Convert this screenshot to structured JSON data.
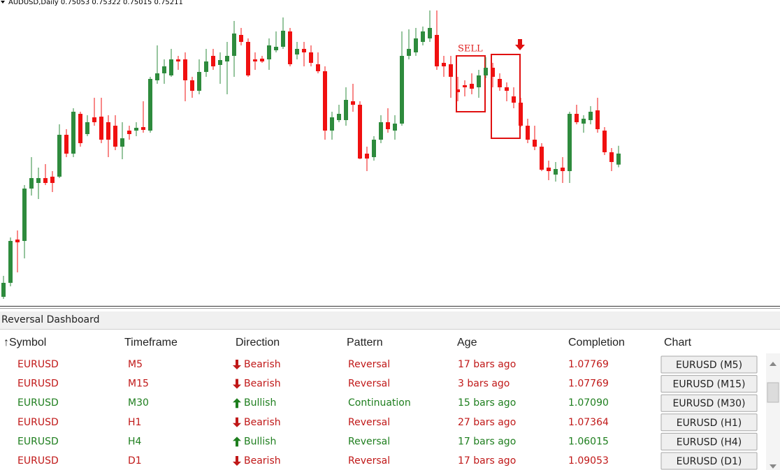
{
  "chart_data": {
    "type": "candlestick",
    "header": "AUDUSD,Daily  0.75053 0.75322 0.75015 0.75211",
    "annotation": "SELL",
    "open": [
      0.7316,
      0.7336,
      0.7398,
      0.7396,
      0.7471,
      0.7479,
      0.7486,
      0.7488,
      0.7488,
      0.7548,
      0.7521,
      0.7578,
      0.7549,
      0.7573,
      0.7574,
      0.7566,
      0.7561,
      0.7531,
      0.7554,
      0.7554,
      0.7559,
      0.7554,
      0.7626,
      0.7636,
      0.7633,
      0.7656,
      0.7656,
      0.7626,
      0.7611,
      0.7638,
      0.7661,
      0.7648,
      0.7653,
      0.7661,
      0.7691,
      0.7681,
      0.7656,
      0.7657,
      0.7656,
      0.7669,
      0.7674,
      0.7696,
      0.7663,
      0.7671,
      0.7666,
      0.7649,
      0.7639,
      0.7554,
      0.7569,
      0.7569,
      0.7596,
      0.7591,
      0.7521,
      0.7516,
      0.7541,
      0.7566,
      0.7554,
      0.7564,
      0.7661,
      0.7666,
      0.7681,
      0.7686,
      0.7691,
      0.7651,
      0.7649,
      0.7613,
      0.7619,
      0.7621,
      0.7616,
      0.7633,
      0.7644,
      0.7628,
      0.7616,
      0.7603,
      0.7594,
      0.7561,
      0.7541,
      0.7531,
      0.7501,
      0.7491,
      0.7501,
      0.7496,
      0.7578,
      0.7564,
      0.7569,
      0.7583,
      0.7554,
      0.7523,
      0.75053
    ],
    "high": [
      0.7346,
      0.7401,
      0.7411,
      0.7476,
      0.7516,
      0.7501,
      0.7506,
      0.7496,
      0.7563,
      0.7556,
      0.7586,
      0.7581,
      0.7576,
      0.7601,
      0.7601,
      0.7576,
      0.7576,
      0.7566,
      0.7561,
      0.7566,
      0.7596,
      0.7631,
      0.7676,
      0.7656,
      0.7671,
      0.7661,
      0.7666,
      0.7631,
      0.7656,
      0.7671,
      0.7671,
      0.7666,
      0.7681,
      0.7711,
      0.7701,
      0.7686,
      0.7666,
      0.7661,
      0.7686,
      0.7696,
      0.7716,
      0.7701,
      0.7681,
      0.7681,
      0.7676,
      0.7666,
      0.7646,
      0.7581,
      0.7591,
      0.7616,
      0.7621,
      0.7596,
      0.7531,
      0.7546,
      0.7576,
      0.7586,
      0.7576,
      0.7696,
      0.7699,
      0.7701,
      0.7703,
      0.7726,
      0.7726,
      0.7661,
      0.7661,
      0.7631,
      0.7626,
      0.7636,
      0.7641,
      0.7659,
      0.7651,
      0.7636,
      0.7623,
      0.7616,
      0.7601,
      0.7571,
      0.7561,
      0.7536,
      0.7511,
      0.7509,
      0.7516,
      0.7581,
      0.7591,
      0.7576,
      0.7589,
      0.7601,
      0.7559,
      0.7529,
      0.75322
    ],
    "low": [
      0.7313,
      0.7331,
      0.7351,
      0.7371,
      0.7461,
      0.7456,
      0.7476,
      0.7466,
      0.7486,
      0.7516,
      0.7516,
      0.7531,
      0.7546,
      0.7561,
      0.7536,
      0.7516,
      0.7526,
      0.7513,
      0.7541,
      0.7546,
      0.7551,
      0.7551,
      0.7621,
      0.7621,
      0.7631,
      0.7641,
      0.7596,
      0.7601,
      0.7606,
      0.7631,
      0.7641,
      0.7621,
      0.7606,
      0.7631,
      0.7676,
      0.7631,
      0.7641,
      0.7651,
      0.7641,
      0.7666,
      0.7671,
      0.7646,
      0.7656,
      0.7646,
      0.7646,
      0.7636,
      0.7541,
      0.7541,
      0.7566,
      0.7561,
      0.7581,
      0.7513,
      0.7496,
      0.7511,
      0.7536,
      0.7551,
      0.7541,
      0.7561,
      0.7656,
      0.7661,
      0.7676,
      0.7681,
      0.7641,
      0.7631,
      0.7601,
      0.7596,
      0.7603,
      0.7606,
      0.7601,
      0.7629,
      0.7616,
      0.7611,
      0.7596,
      0.7586,
      0.7559,
      0.7536,
      0.7526,
      0.7496,
      0.7483,
      0.7481,
      0.7479,
      0.7479,
      0.7563,
      0.7551,
      0.7563,
      0.7551,
      0.7519,
      0.7496,
      0.75015
    ],
    "close": [
      0.7336,
      0.7396,
      0.7394,
      0.7471,
      0.7486,
      0.7486,
      0.7479,
      0.7479,
      0.7548,
      0.7521,
      0.7581,
      0.7536,
      0.7566,
      0.7566,
      0.7541,
      0.7541,
      0.7531,
      0.7543,
      0.7549,
      0.7558,
      0.7555,
      0.7628,
      0.7636,
      0.7646,
      0.7656,
      0.7653,
      0.7626,
      0.7611,
      0.7638,
      0.7653,
      0.7646,
      0.7655,
      0.7661,
      0.7693,
      0.7681,
      0.7633,
      0.7653,
      0.7653,
      0.7676,
      0.7674,
      0.7697,
      0.7649,
      0.7671,
      0.7666,
      0.7651,
      0.7639,
      0.7554,
      0.7573,
      0.7578,
      0.7598,
      0.7591,
      0.7514,
      0.7514,
      0.7541,
      0.7566,
      0.7556,
      0.7564,
      0.7661,
      0.7671,
      0.7686,
      0.7696,
      0.7701,
      0.7646,
      0.7646,
      0.7631,
      0.7609,
      0.7616,
      0.7614,
      0.7633,
      0.7644,
      0.7631,
      0.7616,
      0.7611,
      0.7594,
      0.7561,
      0.7541,
      0.7531,
      0.7498,
      0.7496,
      0.7499,
      0.7496,
      0.7578,
      0.7566,
      0.7571,
      0.7581,
      0.7556,
      0.7523,
      0.7509,
      0.75211
    ],
    "ylim": [
      0.7306,
      0.7741
    ],
    "up_color": "#2e8b3d",
    "down_color": "#f01010"
  },
  "dashboard": {
    "title": "Reversal Dashboard",
    "columns": [
      "↑Symbol",
      "Timeframe",
      "Direction",
      "Pattern",
      "Age",
      "Completion",
      "Chart"
    ],
    "rows": [
      {
        "symbol": "EURUSD",
        "timeframe": "M5",
        "direction": "Bearish",
        "pattern": "Reversal",
        "age": "17 bars ago",
        "completion": "1.07769",
        "chart": "EURUSD (M5)",
        "color": "#c01818",
        "arrow": "down"
      },
      {
        "symbol": "EURUSD",
        "timeframe": "M15",
        "direction": "Bearish",
        "pattern": "Reversal",
        "age": "3 bars ago",
        "completion": "1.07769",
        "chart": "EURUSD (M15)",
        "color": "#c01818",
        "arrow": "down"
      },
      {
        "symbol": "EURUSD",
        "timeframe": "M30",
        "direction": "Bullish",
        "pattern": "Continuation",
        "age": "15 bars ago",
        "completion": "1.07090",
        "chart": "EURUSD (M30)",
        "color": "#1e7e1e",
        "arrow": "up"
      },
      {
        "symbol": "EURUSD",
        "timeframe": "H1",
        "direction": "Bearish",
        "pattern": "Reversal",
        "age": "27 bars ago",
        "completion": "1.07364",
        "chart": "EURUSD (H1)",
        "color": "#c01818",
        "arrow": "down"
      },
      {
        "symbol": "EURUSD",
        "timeframe": "H4",
        "direction": "Bullish",
        "pattern": "Reversal",
        "age": "17 bars ago",
        "completion": "1.06015",
        "chart": "EURUSD (H4)",
        "color": "#1e7e1e",
        "arrow": "up"
      },
      {
        "symbol": "EURUSD",
        "timeframe": "D1",
        "direction": "Bearish",
        "pattern": "Reversal",
        "age": "17 bars ago",
        "completion": "1.09053",
        "chart": "EURUSD (D1)",
        "color": "#c01818",
        "arrow": "down"
      }
    ]
  }
}
